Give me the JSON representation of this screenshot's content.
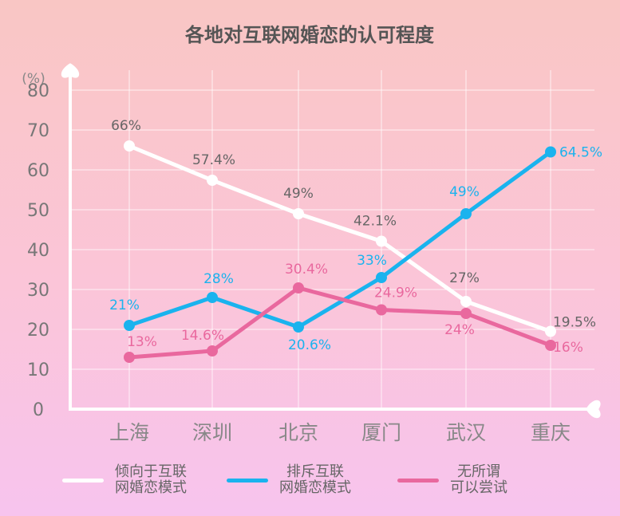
{
  "chart_data": {
    "type": "line",
    "title": "各地对互联网婚恋的认可程度",
    "unit": "(%)",
    "categories": [
      "上海",
      "深圳",
      "北京",
      "厦门",
      "武汉",
      "重庆"
    ],
    "ylim": [
      0,
      85
    ],
    "yticks": [
      0,
      10,
      20,
      30,
      40,
      50,
      60,
      70,
      80
    ],
    "grid": true,
    "legend_position": "bottom",
    "series": [
      {
        "name": "倾向于互联\n网婚恋模式",
        "color": "#ffffff",
        "label_color": "#666666",
        "values": [
          66,
          57.4,
          49,
          42.1,
          27,
          19.5
        ],
        "labels": [
          "66%",
          "57.4%",
          "49%",
          "42.1%",
          "27%",
          "19.5%"
        ]
      },
      {
        "name": "排斥互联\n网婚恋模式",
        "color": "#1ab3ee",
        "label_color": "#1ab3ee",
        "values": [
          21,
          28,
          20.6,
          33,
          49,
          64.5
        ],
        "labels": [
          "21%",
          "28%",
          "20.6%",
          "33%",
          "49%",
          "64.5%"
        ]
      },
      {
        "name": "无所谓\n可以尝试",
        "color": "#e9689e",
        "label_color": "#e9689e",
        "values": [
          13,
          14.6,
          30.4,
          24.9,
          24,
          16
        ],
        "labels": [
          "13%",
          "14.6%",
          "30.4%",
          "24.9%",
          "24%",
          "16%"
        ]
      }
    ]
  }
}
